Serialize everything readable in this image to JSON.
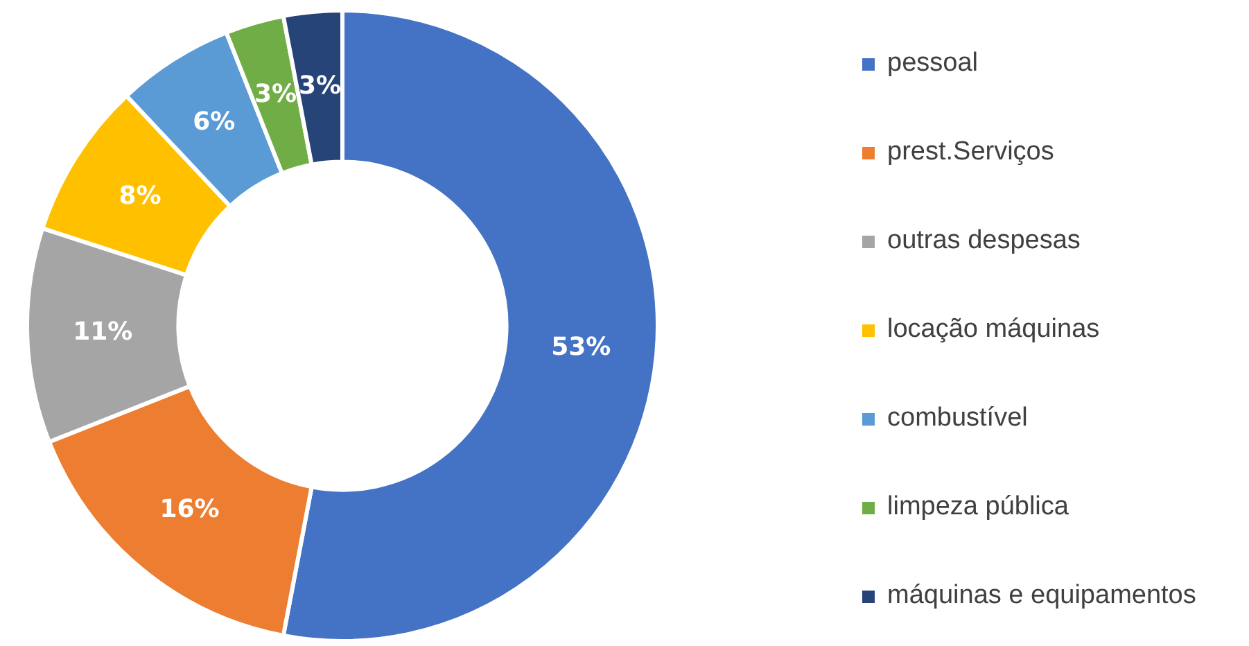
{
  "chart_data": {
    "type": "donut",
    "categories": [
      "pessoal",
      "prest.Serviços",
      "outras despesas",
      "locação máquinas",
      "combustível",
      "limpeza pública",
      "máquinas e equipamentos"
    ],
    "values": [
      53,
      16,
      11,
      8,
      6,
      3,
      3
    ],
    "value_labels": [
      "53%",
      "16%",
      "11%",
      "8%",
      "6%",
      "3%",
      "3%"
    ],
    "colors": [
      "#4472c4",
      "#ed7d31",
      "#a5a5a5",
      "#ffc000",
      "#5b9bd5",
      "#70ad47",
      "#264478"
    ],
    "legend": "right"
  }
}
